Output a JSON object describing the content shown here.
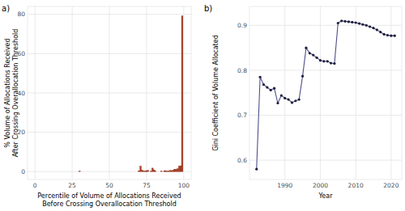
{
  "chart_data": [
    {
      "type": "bar",
      "title": "a)",
      "x_label": "Percentile of Volume of Allocations Received\nBefore Crossing Overallocation Threshold",
      "y_label": "% Volume of Allocations Received\nAfter Crossing Overallocation Threshold",
      "x": [
        30,
        70,
        71,
        72,
        73,
        74,
        75,
        76,
        78,
        79,
        80,
        81,
        85,
        87,
        88,
        89,
        90,
        91,
        92,
        93,
        94,
        95,
        96,
        97,
        98,
        99
      ],
      "values": [
        0.3,
        0.5,
        2.8,
        0.8,
        0.4,
        0.3,
        0.5,
        0.6,
        0.3,
        1.8,
        0.9,
        0.3,
        0.3,
        0.5,
        0.4,
        0.3,
        0.4,
        0.6,
        0.5,
        0.8,
        1.0,
        1.2,
        1.5,
        2.8,
        3.0,
        79.2
      ],
      "color": "#b03a1e",
      "xlim": [
        -5,
        105
      ],
      "xticks": [
        0,
        25,
        50,
        75,
        100
      ],
      "ylim": [
        -4,
        84
      ],
      "yticks": [
        0,
        20,
        40,
        60,
        80
      ],
      "grid": true
    },
    {
      "type": "line",
      "title": "b)",
      "x_label": "Year",
      "y_label": "Gini Coefficient of Volume Allocated",
      "x": [
        1982,
        1983,
        1984,
        1985,
        1986,
        1987,
        1988,
        1989,
        1990,
        1991,
        1992,
        1993,
        1994,
        1995,
        1996,
        1997,
        1998,
        1999,
        2000,
        2001,
        2002,
        2003,
        2004,
        2005,
        2006,
        2007,
        2008,
        2009,
        2010,
        2011,
        2012,
        2013,
        2014,
        2015,
        2016,
        2017,
        2018,
        2019,
        2020,
        2021
      ],
      "values": [
        0.58,
        0.785,
        0.768,
        0.762,
        0.756,
        0.76,
        0.727,
        0.744,
        0.738,
        0.735,
        0.728,
        0.732,
        0.735,
        0.787,
        0.85,
        0.838,
        0.834,
        0.828,
        0.822,
        0.82,
        0.82,
        0.816,
        0.815,
        0.905,
        0.91,
        0.909,
        0.908,
        0.907,
        0.906,
        0.904,
        0.902,
        0.9,
        0.897,
        0.894,
        0.89,
        0.885,
        0.88,
        0.878,
        0.877,
        0.877
      ],
      "color": "#4f4f8c",
      "marker": "circle",
      "xlim": [
        1980,
        2023
      ],
      "xticks": [
        1990,
        2000,
        2010,
        2020
      ],
      "ylim": [
        0.557,
        0.942
      ],
      "yticks": [
        0.6,
        0.7,
        0.8,
        0.9
      ],
      "grid": true
    }
  ]
}
